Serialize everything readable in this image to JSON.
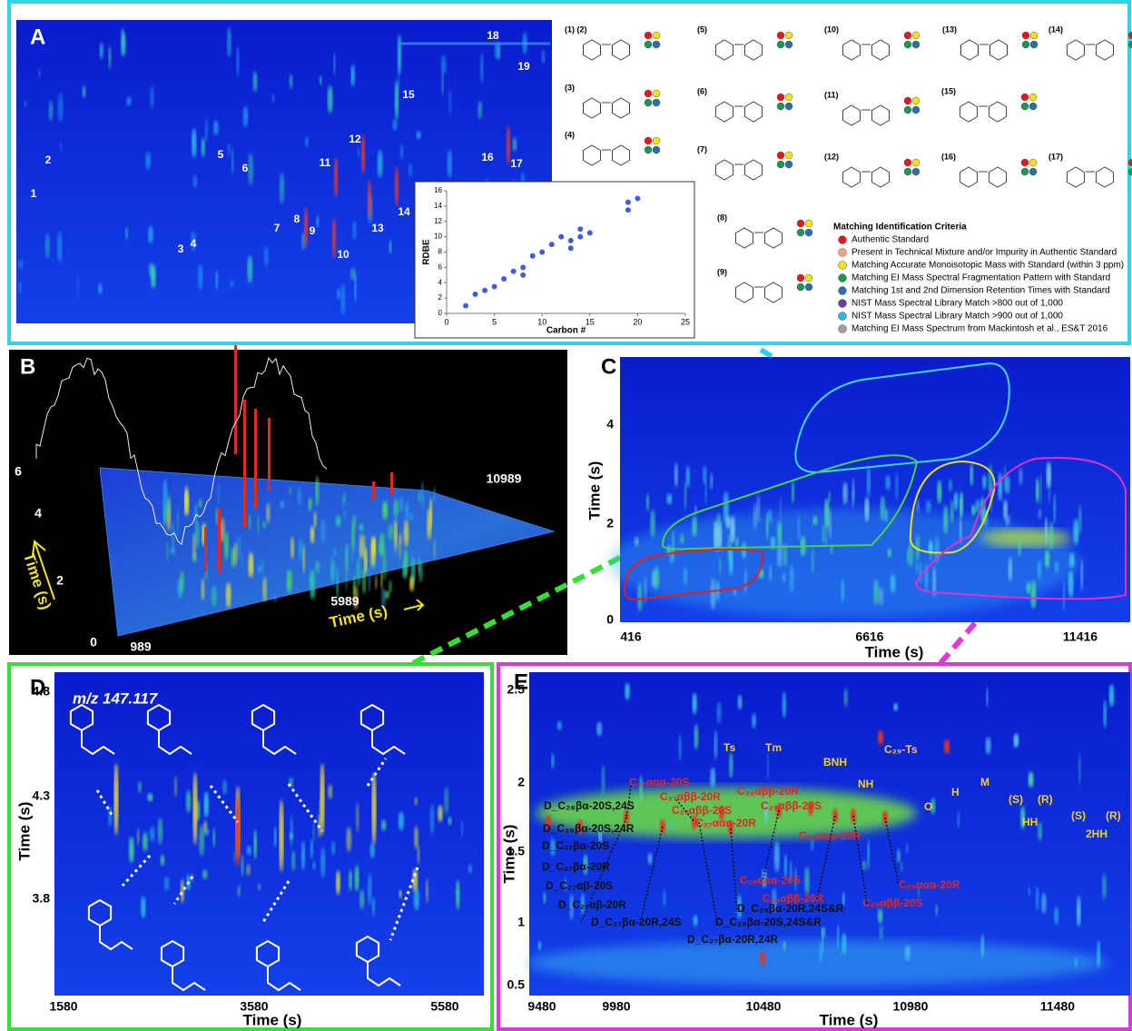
{
  "panel_a": {
    "label": "A",
    "peaks": [
      "1",
      "2",
      "3",
      "4",
      "5",
      "6",
      "7",
      "8",
      "9",
      "10",
      "11",
      "12",
      "13",
      "14",
      "15",
      "16",
      "17",
      "18",
      "19"
    ],
    "structures": [
      "(1) (2)",
      "(3)",
      "(4)",
      "(5)",
      "(6)",
      "(7)",
      "(8)",
      "(9)",
      "(10)",
      "(11)",
      "(12)",
      "(13)",
      "(14)",
      "(15)",
      "(16)",
      "(17)"
    ],
    "legend": {
      "title": "Matching Identification Criteria",
      "items": [
        {
          "label": "Authentic Standard",
          "color": "#e31a1c"
        },
        {
          "label": "Present in Technical Mixture and/or Impurity in Authentic Standard",
          "color": "#f4a582"
        },
        {
          "label": "Matching Accurate Monoisotopic Mass with Standard (within 3 ppm)",
          "color": "#f7e11b"
        },
        {
          "label": "Matching EI Mass Spectral Fragmentation Pattern with Standard",
          "color": "#1a9850"
        },
        {
          "label": "Matching 1st and 2nd Dimension Retention Times with Standard",
          "color": "#2c6fa8"
        },
        {
          "label": "NIST Mass Spectral Library Match >800 out of 1,000",
          "color": "#6a3d9a"
        },
        {
          "label": "NIST Mass Spectral Library Match >900 out of 1,000",
          "color": "#29b6e8"
        },
        {
          "label": "Matching EI Mass Spectrum from Mackintosh et al., ES&T 2016",
          "color": "#9e9e9e"
        }
      ]
    },
    "inset": {
      "type": "scatter",
      "x_label": "Carbon #",
      "y_label": "RDBE",
      "xlim": [
        0,
        25
      ],
      "ylim": [
        0,
        16
      ],
      "xticks": [
        0,
        5,
        10,
        15,
        20,
        25
      ],
      "yticks": [
        0,
        2,
        4,
        6,
        8,
        10,
        12,
        14,
        16
      ],
      "x": [
        2,
        3,
        4,
        5,
        6,
        7,
        8,
        8,
        9,
        10,
        11,
        12,
        13,
        13,
        14,
        14,
        15,
        19,
        19,
        20
      ],
      "y": [
        1,
        2.5,
        3,
        3.5,
        4.5,
        5.5,
        6,
        5,
        7.5,
        8,
        9,
        10,
        9.5,
        8.5,
        11,
        10,
        10.5,
        13.5,
        14.5,
        15
      ],
      "color": "#1f3fe0"
    }
  },
  "panel_b": {
    "label": "B",
    "yticks": [
      0,
      2,
      4,
      6
    ],
    "xticks": [
      989,
      5989,
      10989
    ],
    "y_label": "Time (s)",
    "x_label": "Time (s)"
  },
  "panel_c": {
    "label": "C",
    "yticks": [
      0,
      2,
      4
    ],
    "xticks": [
      416,
      6616,
      11416
    ],
    "y_label": "Time (s)",
    "x_label": "Time (s)"
  },
  "panel_d": {
    "label": "D",
    "ion": "m/z 147.117",
    "yticks": [
      4.8,
      4.3,
      3.8
    ],
    "xticks": [
      1580,
      3580,
      5580
    ],
    "y_label": "Time (s)",
    "x_label": "Time (s)"
  },
  "panel_e": {
    "label": "E",
    "yticks": [
      2.5,
      2,
      1.5,
      1,
      0.5
    ],
    "xticks": [
      9480,
      9980,
      10480,
      10980,
      11480
    ],
    "y_label": "Time (s)",
    "x_label": "Time (s)",
    "hopanes": {
      "color": "#f2d024",
      "labels": [
        "Ts",
        "Tm",
        "BNH",
        "C₂₉-Ts",
        "NH",
        "O",
        "H",
        "M",
        "(S)",
        "(R)",
        "HH",
        "(S)",
        "(R)",
        "2HH"
      ]
    },
    "steranes": {
      "color": "#e0281f",
      "labels": [
        "C₂₇ααα-20S",
        "C₂₇αββ-20R",
        "C₂₇αββ-20S",
        "C₂₇ααα-20R",
        "C₂₈αββ-20R",
        "C₂₈αββ-20S",
        "C₂₈ααα-20R",
        "C₂₉ααα-20S",
        "C₂₉αββ-20R",
        "C₂₉αββ-20S",
        "C₂₉ααα-20R"
      ]
    },
    "diasteranes": {
      "color": "#111111",
      "labels": [
        "D_C₂₈βα-20S,24S",
        "D_C₂₈βα-20S,24R",
        "D_C₂₇βα-20S",
        "D_C₂₇βα-20R",
        "D_C₂₇αβ-20S",
        "D_C₂₇αβ-20R",
        "D_C₂₇βα-20R,24S",
        "D_C₂₇βα-20R,24R",
        "D_C₂₉βα-20S,24S&R",
        "D_C₂₉βα-20R,24S&R"
      ]
    }
  }
}
